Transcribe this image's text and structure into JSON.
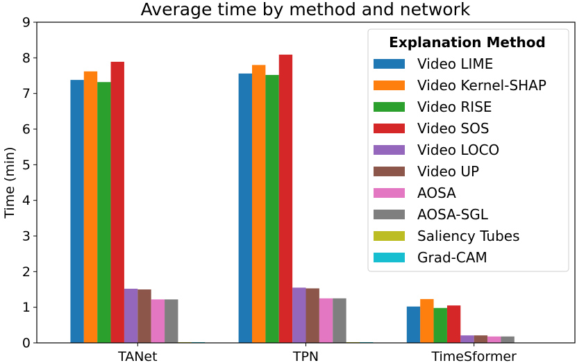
{
  "chart_data": {
    "type": "bar",
    "title": "Average time by method and network",
    "xlabel": "",
    "ylabel": "Time (min)",
    "ylim": [
      0,
      9
    ],
    "yticks": [
      0,
      1,
      2,
      3,
      4,
      5,
      6,
      7,
      8,
      9
    ],
    "grid": false,
    "legend_title": "Explanation Method",
    "legend_position": "top-right",
    "categories": [
      "TANet",
      "TPN",
      "TimeSformer"
    ],
    "series": [
      {
        "name": "Video LIME",
        "color": "#1f77b4",
        "values": [
          7.38,
          7.56,
          1.02
        ]
      },
      {
        "name": "Video Kernel-SHAP",
        "color": "#ff7f0e",
        "values": [
          7.62,
          7.8,
          1.23
        ]
      },
      {
        "name": "Video RISE",
        "color": "#2ca02c",
        "values": [
          7.32,
          7.52,
          0.98
        ]
      },
      {
        "name": "Video SOS",
        "color": "#d62728",
        "values": [
          7.89,
          8.09,
          1.05
        ]
      },
      {
        "name": "Video LOCO",
        "color": "#9467bd",
        "values": [
          1.52,
          1.55,
          0.21
        ]
      },
      {
        "name": "Video UP",
        "color": "#8c564b",
        "values": [
          1.5,
          1.53,
          0.21
        ]
      },
      {
        "name": "AOSA",
        "color": "#e377c2",
        "values": [
          1.22,
          1.25,
          0.18
        ]
      },
      {
        "name": "AOSA-SGL",
        "color": "#7f7f7f",
        "values": [
          1.22,
          1.25,
          0.18
        ]
      },
      {
        "name": "Saliency Tubes",
        "color": "#bcbd22",
        "values": [
          0.02,
          0.02,
          0.0
        ]
      },
      {
        "name": "Grad-CAM",
        "color": "#17becf",
        "values": [
          0.02,
          0.02,
          0.0
        ]
      }
    ]
  }
}
